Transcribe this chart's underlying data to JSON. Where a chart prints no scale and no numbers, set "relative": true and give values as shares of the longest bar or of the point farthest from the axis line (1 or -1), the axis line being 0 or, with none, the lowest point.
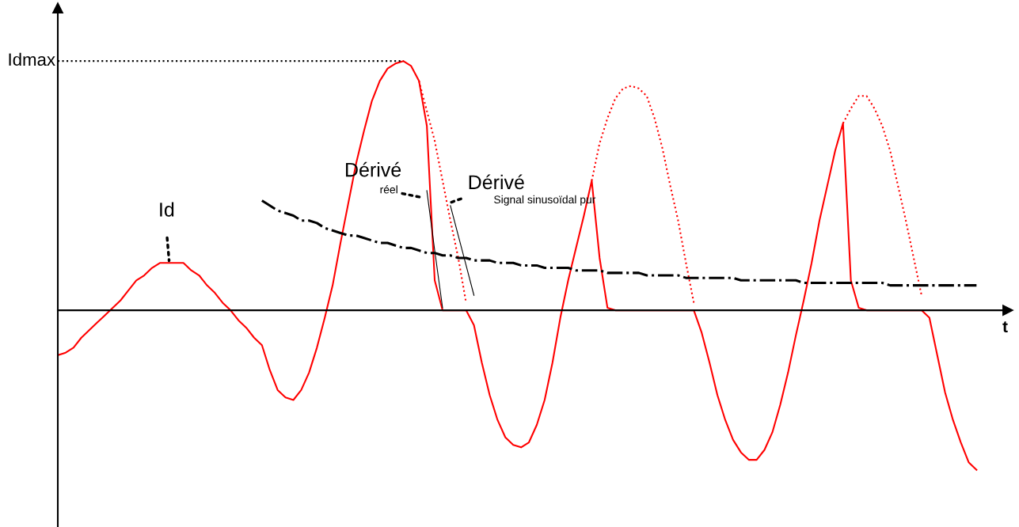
{
  "chart_data": {
    "type": "line",
    "relative": true,
    "xlabel": "t",
    "categories": [
      null,
      null,
      null,
      null,
      null,
      null,
      null,
      null,
      null,
      null,
      null,
      null,
      null,
      null,
      null,
      null,
      null,
      null,
      null,
      null,
      null,
      null,
      null,
      null,
      null,
      null,
      null,
      null,
      null,
      null,
      null,
      null,
      null,
      null,
      null,
      null,
      null,
      null,
      null,
      null,
      null,
      null,
      null,
      null,
      null,
      null,
      null,
      null,
      null,
      null,
      null,
      null,
      null,
      null,
      null,
      null,
      null,
      null,
      null,
      null,
      null,
      null,
      null,
      null,
      null,
      null,
      null,
      null,
      null,
      null,
      null,
      null,
      null,
      null,
      null,
      null,
      null,
      null,
      null,
      null,
      null,
      null,
      null,
      null,
      null,
      null,
      null,
      null,
      null,
      null,
      null,
      null,
      null,
      null,
      null,
      null,
      null,
      null,
      null,
      null,
      null,
      null,
      null,
      null,
      null,
      null,
      null,
      null,
      null,
      null,
      null,
      null,
      null,
      null,
      null,
      null,
      null,
      null
    ],
    "series": [
      {
        "color": "#ff0000",
        "line_style": "solid",
        "values": [
          -0.18,
          -0.17,
          -0.15,
          -0.11,
          -0.08,
          -0.05,
          -0.02,
          0.01,
          0.04,
          0.08,
          0.12,
          0.14,
          0.17,
          0.19,
          0.19,
          0.19,
          0.19,
          0.16,
          0.14,
          0.1,
          0.07,
          0.03,
          0.0,
          -0.04,
          -0.07,
          -0.11,
          -0.14,
          -0.24,
          -0.32,
          -0.35,
          -0.36,
          -0.32,
          -0.25,
          -0.15,
          -0.03,
          0.1,
          0.27,
          0.43,
          0.59,
          0.72,
          0.84,
          0.92,
          0.97,
          0.99,
          1.0,
          0.98,
          0.92,
          0.74,
          0.12,
          0.0,
          0.0,
          0.0,
          0.0,
          -0.06,
          -0.21,
          -0.34,
          -0.44,
          -0.51,
          -0.54,
          -0.55,
          -0.53,
          -0.46,
          -0.36,
          -0.21,
          -0.03,
          0.12,
          0.25,
          0.38,
          0.52,
          0.21,
          0.01,
          0.0,
          0.0,
          0.0,
          0.0,
          0.0,
          0.0,
          0.0,
          0.0,
          0.0,
          0.0,
          0.0,
          -0.09,
          -0.21,
          -0.34,
          -0.44,
          -0.52,
          -0.57,
          -0.6,
          -0.6,
          -0.56,
          -0.49,
          -0.38,
          -0.25,
          -0.1,
          0.04,
          0.19,
          0.36,
          0.5,
          0.64,
          0.75,
          0.12,
          0.01,
          0.0,
          0.0,
          0.0,
          0.0,
          0.0,
          0.0,
          0.0,
          0.0,
          -0.03,
          -0.18,
          -0.33,
          -0.44,
          -0.53,
          -0.61,
          -0.64
        ]
      },
      {
        "color": "#ff0000",
        "line_style": "dotted",
        "values": [
          null,
          null,
          null,
          null,
          null,
          null,
          null,
          null,
          null,
          null,
          null,
          null,
          null,
          null,
          null,
          null,
          null,
          null,
          null,
          null,
          null,
          null,
          null,
          null,
          null,
          null,
          null,
          null,
          null,
          null,
          null,
          null,
          null,
          null,
          null,
          null,
          null,
          null,
          null,
          null,
          null,
          null,
          null,
          null,
          null,
          null,
          0.92,
          0.8,
          0.68,
          0.52,
          0.36,
          0.21,
          0.03,
          null,
          null,
          null,
          null,
          null,
          null,
          null,
          null,
          null,
          null,
          null,
          null,
          null,
          null,
          null,
          0.52,
          0.67,
          0.77,
          0.85,
          0.89,
          0.9,
          0.89,
          0.86,
          0.77,
          0.65,
          0.5,
          0.36,
          0.19,
          0.03,
          null,
          null,
          null,
          null,
          null,
          null,
          null,
          null,
          null,
          null,
          null,
          null,
          null,
          null,
          null,
          null,
          null,
          null,
          0.75,
          0.81,
          0.86,
          0.86,
          0.81,
          0.74,
          0.64,
          0.5,
          0.36,
          0.21,
          0.06,
          null,
          null,
          null,
          null,
          null,
          null,
          null
        ]
      },
      {
        "color": "#000000",
        "line_style": "dashdot",
        "values": [
          null,
          null,
          null,
          null,
          null,
          null,
          null,
          null,
          null,
          null,
          null,
          null,
          null,
          null,
          null,
          null,
          null,
          null,
          null,
          null,
          null,
          null,
          null,
          null,
          null,
          null,
          0.44,
          0.42,
          0.4,
          0.39,
          0.38,
          0.36,
          0.36,
          0.35,
          0.33,
          0.32,
          0.31,
          0.3,
          0.3,
          0.29,
          0.28,
          0.27,
          0.27,
          0.26,
          0.25,
          0.25,
          0.24,
          0.23,
          0.23,
          0.22,
          0.22,
          0.21,
          0.21,
          0.2,
          0.2,
          0.2,
          0.19,
          0.19,
          0.19,
          0.18,
          0.18,
          0.18,
          0.17,
          0.17,
          0.17,
          0.17,
          0.16,
          0.16,
          0.16,
          0.16,
          0.15,
          0.15,
          0.15,
          0.15,
          0.15,
          0.14,
          0.14,
          0.14,
          0.14,
          0.14,
          0.13,
          0.13,
          0.13,
          0.13,
          0.13,
          0.13,
          0.13,
          0.12,
          0.12,
          0.12,
          0.12,
          0.12,
          0.12,
          0.12,
          0.12,
          0.11,
          0.11,
          0.11,
          0.11,
          0.11,
          0.11,
          0.11,
          0.11,
          0.11,
          0.11,
          0.11,
          0.1,
          0.1,
          0.1,
          0.1,
          0.1,
          0.1,
          0.1,
          0.1,
          0.1,
          0.1,
          0.1,
          0.1
        ]
      },
      {
        "color": "#000000",
        "line_style": "solid",
        "values": [
          null,
          null,
          null,
          null,
          null,
          null,
          null,
          null,
          null,
          null,
          null,
          null,
          null,
          null,
          null,
          null,
          null,
          null,
          null,
          null,
          null,
          null,
          null,
          null,
          null,
          null,
          null,
          null,
          null,
          null,
          null,
          null,
          null,
          null,
          null,
          null,
          null,
          null,
          null,
          null,
          null,
          null,
          null,
          null,
          null,
          null,
          null,
          0.48,
          0.24,
          0.01,
          null,
          null,
          null,
          null,
          null,
          null,
          null,
          null,
          null,
          null,
          null,
          null,
          null,
          null,
          null,
          null,
          null,
          null,
          null,
          null,
          null,
          null,
          null,
          null,
          null,
          null,
          null,
          null,
          null,
          null,
          null,
          null,
          null,
          null,
          null,
          null,
          null,
          null,
          null,
          null,
          null,
          null,
          null,
          null,
          null,
          null,
          null,
          null,
          null,
          null,
          null,
          null,
          null,
          null,
          null,
          null,
          null,
          null,
          null,
          null,
          null,
          null,
          null,
          null,
          null,
          null,
          null,
          null
        ]
      },
      {
        "color": "#000000",
        "line_style": "solid",
        "values": [
          null,
          null,
          null,
          null,
          null,
          null,
          null,
          null,
          null,
          null,
          null,
          null,
          null,
          null,
          null,
          null,
          null,
          null,
          null,
          null,
          null,
          null,
          null,
          null,
          null,
          null,
          null,
          null,
          null,
          null,
          null,
          null,
          null,
          null,
          null,
          null,
          null,
          null,
          null,
          null,
          null,
          null,
          null,
          null,
          null,
          null,
          null,
          null,
          null,
          null,
          0.42,
          0.3,
          0.18,
          0.06,
          null,
          null,
          null,
          null,
          null,
          null,
          null,
          null,
          null,
          null,
          null,
          null,
          null,
          null,
          null,
          null,
          null,
          null,
          null,
          null,
          null,
          null,
          null,
          null,
          null,
          null,
          null,
          null,
          null,
          null,
          null,
          null,
          null,
          null,
          null,
          null,
          null,
          null,
          null,
          null,
          null,
          null,
          null,
          null,
          null,
          null,
          null,
          null,
          null,
          null,
          null,
          null,
          null,
          null,
          null,
          null,
          null,
          null,
          null,
          null,
          null,
          null,
          null,
          null
        ]
      }
    ],
    "ref_lines": [
      {
        "axis": "y",
        "value": 1,
        "label": "Idmax",
        "color": "#000000",
        "line_style": "dotted"
      }
    ],
    "annotations": [
      "Id",
      "Dérivé",
      "réel",
      "Dérivé",
      "Signal sinusoïdal pur"
    ]
  }
}
